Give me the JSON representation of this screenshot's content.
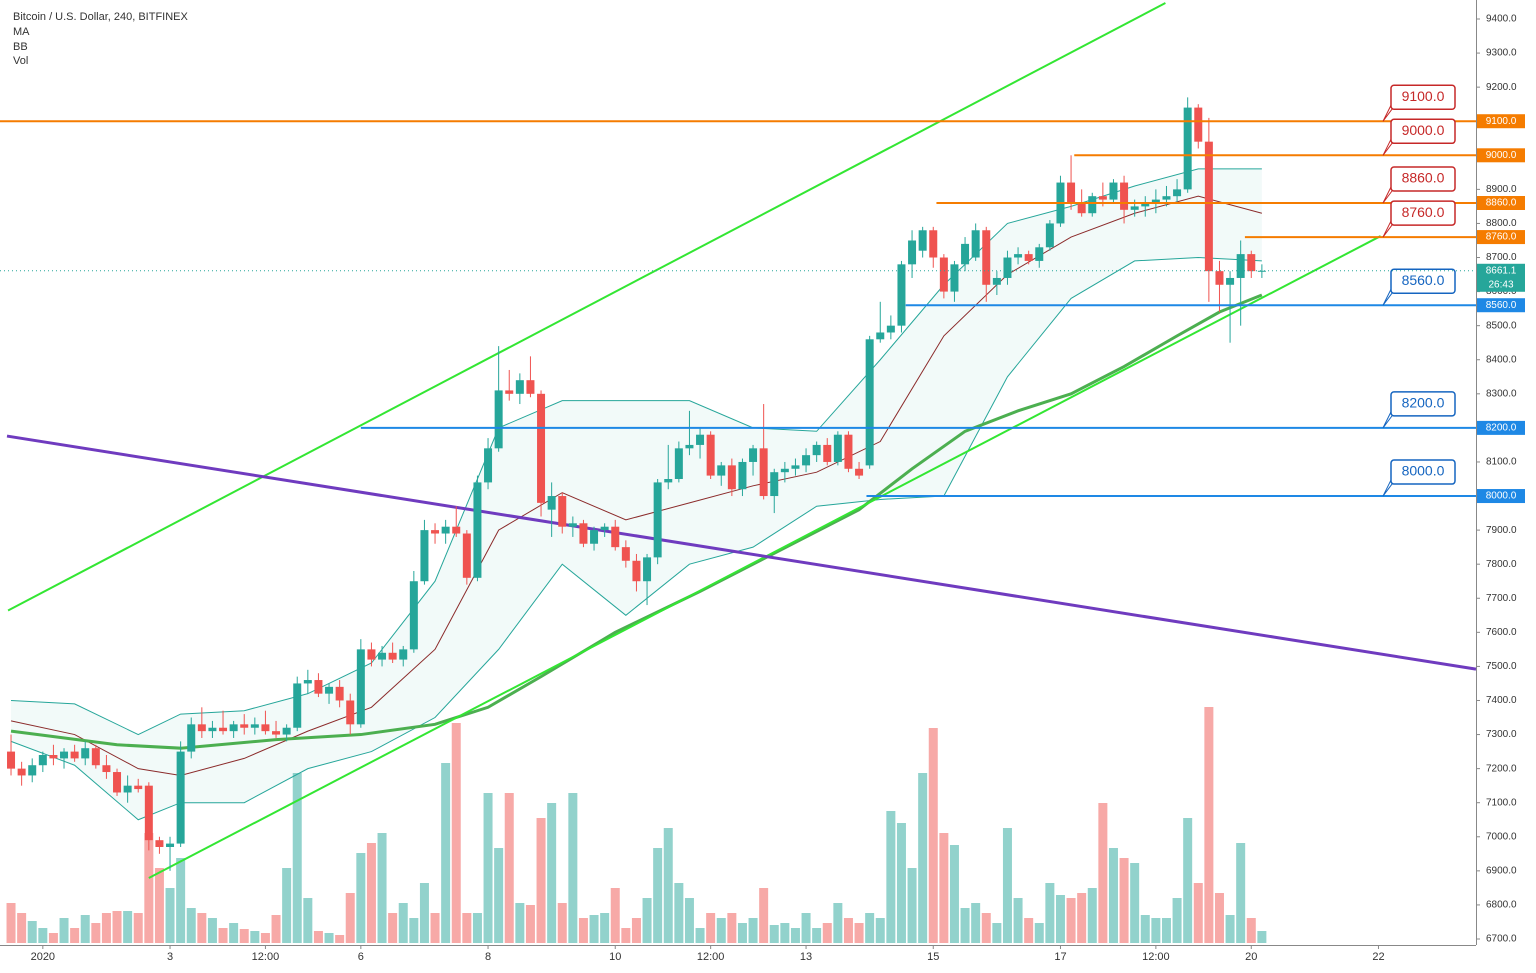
{
  "chart_data": {
    "type": "candlestick",
    "title": "Bitcoin / U.S. Dollar, 240, BITFINEX",
    "indicators": [
      "MA",
      "BB",
      "Vol"
    ],
    "up_color": "#26a69a",
    "down_color": "#ef5350",
    "xlim": [
      -1.04,
      138.2
    ],
    "xticks": [
      {
        "value": 3,
        "label": "2020"
      },
      {
        "value": 15,
        "label": "3"
      },
      {
        "value": 24,
        "label": "12:00"
      },
      {
        "value": 33,
        "label": "6"
      },
      {
        "value": 45,
        "label": "8"
      },
      {
        "value": 57,
        "label": "10"
      },
      {
        "value": 66,
        "label": "12:00"
      },
      {
        "value": 75,
        "label": "13"
      },
      {
        "value": 87,
        "label": "15"
      },
      {
        "value": 99,
        "label": "17"
      },
      {
        "value": 108,
        "label": "12:00"
      },
      {
        "value": 117,
        "label": "20"
      },
      {
        "value": 129,
        "label": "22"
      }
    ],
    "ylim": [
      6700,
      9400
    ],
    "yticks": [
      {
        "value": 9400,
        "label": "9400.0"
      },
      {
        "value": 9300,
        "label": "9300.0"
      },
      {
        "value": 9200,
        "label": "9200.0"
      },
      {
        "value": 9100,
        "label": "9100.0"
      },
      {
        "value": 9000,
        "label": "9000.0"
      },
      {
        "value": 8900,
        "label": "8900.0"
      },
      {
        "value": 8800,
        "label": "8800.0"
      },
      {
        "value": 8700,
        "label": "8700.0"
      },
      {
        "value": 8600,
        "label": "8600.0"
      },
      {
        "value": 8500,
        "label": "8500.0"
      },
      {
        "value": 8400,
        "label": "8400.0"
      },
      {
        "value": 8300,
        "label": "8300.0"
      },
      {
        "value": 8200,
        "label": "8200.0"
      },
      {
        "value": 8100,
        "label": "8100.0"
      },
      {
        "value": 8000,
        "label": "8000.0"
      },
      {
        "value": 7900,
        "label": "7900.0"
      },
      {
        "value": 7800,
        "label": "7800.0"
      },
      {
        "value": 7700,
        "label": "7700.0"
      },
      {
        "value": 7600,
        "label": "7600.0"
      },
      {
        "value": 7500,
        "label": "7500.0"
      },
      {
        "value": 7400,
        "label": "7400.0"
      },
      {
        "value": 7300,
        "label": "7300.0"
      },
      {
        "value": 7200,
        "label": "7200.0"
      },
      {
        "value": 7100,
        "label": "7100.0"
      },
      {
        "value": 7000,
        "label": "7000.0"
      },
      {
        "value": 6900,
        "label": "6900.0"
      },
      {
        "value": 6800,
        "label": "6800.0"
      },
      {
        "value": 6700,
        "label": "6700.0"
      }
    ],
    "ohlc": [
      [
        7250,
        7300,
        7180,
        7200
      ],
      [
        7200,
        7220,
        7150,
        7180
      ],
      [
        7180,
        7230,
        7160,
        7210
      ],
      [
        7210,
        7250,
        7190,
        7240
      ],
      [
        7240,
        7270,
        7210,
        7230
      ],
      [
        7230,
        7260,
        7200,
        7250
      ],
      [
        7250,
        7270,
        7220,
        7230
      ],
      [
        7230,
        7280,
        7210,
        7260
      ],
      [
        7260,
        7270,
        7200,
        7210
      ],
      [
        7210,
        7240,
        7170,
        7190
      ],
      [
        7190,
        7200,
        7120,
        7130
      ],
      [
        7130,
        7180,
        7100,
        7150
      ],
      [
        7150,
        7170,
        7130,
        7140
      ],
      [
        7150,
        7160,
        6960,
        6990
      ],
      [
        6990,
        7000,
        6950,
        6970
      ],
      [
        6970,
        7000,
        6900,
        6980
      ],
      [
        6980,
        7280,
        6970,
        7250
      ],
      [
        7250,
        7350,
        7230,
        7330
      ],
      [
        7330,
        7380,
        7290,
        7310
      ],
      [
        7310,
        7340,
        7290,
        7320
      ],
      [
        7320,
        7370,
        7300,
        7310
      ],
      [
        7310,
        7340,
        7290,
        7330
      ],
      [
        7330,
        7360,
        7300,
        7320
      ],
      [
        7320,
        7350,
        7300,
        7330
      ],
      [
        7330,
        7370,
        7300,
        7310
      ],
      [
        7310,
        7340,
        7290,
        7300
      ],
      [
        7300,
        7330,
        7280,
        7320
      ],
      [
        7320,
        7470,
        7310,
        7450
      ],
      [
        7450,
        7490,
        7420,
        7460
      ],
      [
        7460,
        7480,
        7410,
        7420
      ],
      [
        7420,
        7450,
        7390,
        7440
      ],
      [
        7440,
        7460,
        7380,
        7400
      ],
      [
        7400,
        7420,
        7300,
        7330
      ],
      [
        7330,
        7580,
        7320,
        7550
      ],
      [
        7550,
        7570,
        7500,
        7520
      ],
      [
        7520,
        7560,
        7500,
        7540
      ],
      [
        7540,
        7570,
        7510,
        7520
      ],
      [
        7520,
        7560,
        7500,
        7550
      ],
      [
        7550,
        7780,
        7540,
        7750
      ],
      [
        7750,
        7930,
        7740,
        7900
      ],
      [
        7900,
        7920,
        7860,
        7890
      ],
      [
        7890,
        7930,
        7860,
        7910
      ],
      [
        7910,
        7970,
        7880,
        7890
      ],
      [
        7890,
        7900,
        7740,
        7760
      ],
      [
        7760,
        8060,
        7750,
        8040
      ],
      [
        8040,
        8170,
        8020,
        8140
      ],
      [
        8140,
        8440,
        8130,
        8310
      ],
      [
        8310,
        8370,
        8280,
        8300
      ],
      [
        8300,
        8360,
        8270,
        8340
      ],
      [
        8340,
        8410,
        8290,
        8300
      ],
      [
        8300,
        8310,
        7940,
        7980
      ],
      [
        7960,
        8040,
        7880,
        8000
      ],
      [
        8000,
        8010,
        7890,
        7910
      ],
      [
        7910,
        7940,
        7880,
        7920
      ],
      [
        7920,
        7930,
        7850,
        7860
      ],
      [
        7860,
        7910,
        7840,
        7900
      ],
      [
        7900,
        7920,
        7880,
        7910
      ],
      [
        7910,
        7930,
        7840,
        7850
      ],
      [
        7850,
        7870,
        7790,
        7810
      ],
      [
        7810,
        7830,
        7720,
        7750
      ],
      [
        7750,
        7830,
        7680,
        7820
      ],
      [
        7820,
        8050,
        7800,
        8040
      ],
      [
        8040,
        8150,
        8020,
        8050
      ],
      [
        8050,
        8160,
        8040,
        8140
      ],
      [
        8140,
        8250,
        8120,
        8150
      ],
      [
        8150,
        8200,
        8110,
        8180
      ],
      [
        8180,
        8190,
        8050,
        8060
      ],
      [
        8060,
        8100,
        8030,
        8090
      ],
      [
        8090,
        8110,
        8000,
        8020
      ],
      [
        8020,
        8110,
        8000,
        8100
      ],
      [
        8100,
        8150,
        8060,
        8140
      ],
      [
        8140,
        8270,
        7990,
        8000
      ],
      [
        8000,
        8080,
        7950,
        8070
      ],
      [
        8070,
        8100,
        8040,
        8080
      ],
      [
        8080,
        8110,
        8060,
        8090
      ],
      [
        8090,
        8140,
        8070,
        8120
      ],
      [
        8120,
        8160,
        8100,
        8150
      ],
      [
        8150,
        8170,
        8090,
        8100
      ],
      [
        8100,
        8190,
        8090,
        8180
      ],
      [
        8180,
        8190,
        8070,
        8080
      ],
      [
        8080,
        8100,
        8050,
        8060
      ],
      [
        8090,
        8470,
        8080,
        8460
      ],
      [
        8460,
        8570,
        8450,
        8480
      ],
      [
        8480,
        8530,
        8460,
        8500
      ],
      [
        8500,
        8690,
        8480,
        8680
      ],
      [
        8680,
        8780,
        8640,
        8750
      ],
      [
        8720,
        8790,
        8700,
        8780
      ],
      [
        8780,
        8790,
        8670,
        8700
      ],
      [
        8700,
        8710,
        8580,
        8600
      ],
      [
        8600,
        8690,
        8570,
        8680
      ],
      [
        8680,
        8760,
        8660,
        8740
      ],
      [
        8700,
        8800,
        8690,
        8780
      ],
      [
        8780,
        8790,
        8570,
        8620
      ],
      [
        8620,
        8660,
        8590,
        8640
      ],
      [
        8640,
        8720,
        8620,
        8700
      ],
      [
        8700,
        8730,
        8680,
        8710
      ],
      [
        8710,
        8720,
        8680,
        8690
      ],
      [
        8690,
        8740,
        8670,
        8730
      ],
      [
        8730,
        8810,
        8720,
        8800
      ],
      [
        8800,
        8940,
        8790,
        8920
      ],
      [
        8920,
        9000,
        8840,
        8860
      ],
      [
        8860,
        8900,
        8820,
        8830
      ],
      [
        8830,
        8890,
        8820,
        8880
      ],
      [
        8880,
        8920,
        8850,
        8870
      ],
      [
        8870,
        8930,
        8860,
        8920
      ],
      [
        8920,
        8940,
        8800,
        8840
      ],
      [
        8840,
        8870,
        8820,
        8850
      ],
      [
        8850,
        8880,
        8820,
        8860
      ],
      [
        8860,
        8900,
        8830,
        8870
      ],
      [
        8870,
        8910,
        8850,
        8880
      ],
      [
        8880,
        8930,
        8860,
        8900
      ],
      [
        8900,
        9170,
        8890,
        9140
      ],
      [
        9140,
        9150,
        9020,
        9040
      ],
      [
        9040,
        9110,
        8570,
        8660
      ],
      [
        8660,
        8690,
        8540,
        8620
      ],
      [
        8620,
        8660,
        8450,
        8640
      ],
      [
        8640,
        8750,
        8500,
        8710
      ],
      [
        8710,
        8720,
        8640,
        8660
      ],
      [
        8660,
        8680,
        8640,
        8661.1
      ]
    ],
    "volume": [
      40,
      30,
      22,
      15,
      10,
      25,
      15,
      28,
      20,
      30,
      32,
      32,
      30,
      110,
      75,
      55,
      85,
      35,
      30,
      25,
      15,
      20,
      14,
      12,
      10,
      28,
      75,
      170,
      45,
      12,
      10,
      8,
      50,
      90,
      100,
      110,
      30,
      40,
      25,
      60,
      30,
      180,
      220,
      30,
      30,
      150,
      95,
      150,
      40,
      38,
      125,
      140,
      40,
      150,
      25,
      28,
      30,
      55,
      15,
      25,
      45,
      95,
      115,
      60,
      45,
      15,
      30,
      25,
      30,
      20,
      25,
      55,
      18,
      20,
      15,
      30,
      15,
      20,
      40,
      25,
      20,
      30,
      25,
      132,
      120,
      75,
      170,
      215,
      110,
      98,
      35,
      40,
      30,
      20,
      115,
      45,
      25,
      20,
      60,
      48,
      45,
      50,
      55,
      140,
      95,
      85,
      80,
      28,
      25,
      25,
      45,
      125,
      60,
      236,
      50,
      28,
      100,
      25,
      12
    ],
    "ma": {
      "color": "#4caf50",
      "x": [
        0,
        10,
        16,
        25,
        33,
        40,
        45,
        50,
        57,
        65,
        75,
        80,
        85,
        90,
        95,
        100,
        105,
        110,
        114,
        118
      ],
      "values": [
        7310,
        7270,
        7260,
        7285,
        7300,
        7330,
        7380,
        7470,
        7600,
        7720,
        7880,
        7960,
        8080,
        8190,
        8250,
        8300,
        8380,
        8470,
        8540,
        8590
      ]
    },
    "bb": {
      "x": [
        0,
        6,
        12,
        16,
        22,
        28,
        34,
        40,
        46,
        52,
        58,
        64,
        70,
        76,
        82,
        88,
        94,
        100,
        106,
        112,
        118
      ],
      "upper": [
        7400,
        7390,
        7300,
        7360,
        7370,
        7420,
        7510,
        7750,
        8200,
        8280,
        8280,
        8280,
        8200,
        8190,
        8400,
        8620,
        8800,
        8850,
        8910,
        8960,
        8960
      ],
      "basis": [
        7340,
        7300,
        7200,
        7180,
        7230,
        7310,
        7380,
        7550,
        7900,
        8010,
        7930,
        7980,
        8030,
        8070,
        8160,
        8470,
        8650,
        8760,
        8830,
        8880,
        8830
      ],
      "lower": [
        7280,
        7210,
        7050,
        7100,
        7100,
        7200,
        7250,
        7350,
        7550,
        7800,
        7650,
        7800,
        7850,
        7970,
        7990,
        8000,
        8350,
        8580,
        8690,
        8700,
        8690
      ],
      "band_color": "#26a69a",
      "basis_color": "#8b2b2b"
    },
    "trendlines": [
      {
        "color": "#33e633",
        "x": [
          -0.28,
          108.9
        ],
        "y": [
          7664,
          9447
        ]
      },
      {
        "color": "#33e633",
        "x": [
          13.0,
          129.2
        ],
        "y": [
          6879,
          8763
        ]
      },
      {
        "color": "#6f3bbf",
        "x": [
          -0.38,
          138.2
        ],
        "y": [
          8176,
          7492
        ]
      }
    ],
    "levels": [
      {
        "value": 9100,
        "label": "9100.0",
        "color": "#f57c00",
        "callout": "#c62828",
        "start": -1.04
      },
      {
        "value": 9000,
        "label": "9000.0",
        "color": "#f57c00",
        "callout": "#c62828",
        "start": 100.3
      },
      {
        "value": 8860,
        "label": "8860.0",
        "color": "#f57c00",
        "callout": "#c62828",
        "start": 87.3
      },
      {
        "value": 8760,
        "label": "8760.0",
        "color": "#f57c00",
        "callout": "#c62828",
        "start": 116.4
      },
      {
        "value": 8560,
        "label": "8560.0",
        "color": "#1e88e5",
        "callout": "#1565c0",
        "start": 84.4
      },
      {
        "value": 8200,
        "label": "8200.0",
        "color": "#1e88e5",
        "callout": "#1565c0",
        "start": 33.0
      },
      {
        "value": 8000,
        "label": "8000.0",
        "color": "#1e88e5",
        "callout": "#1565c0",
        "start": 80.7
      }
    ],
    "countdown": "26:43"
  }
}
